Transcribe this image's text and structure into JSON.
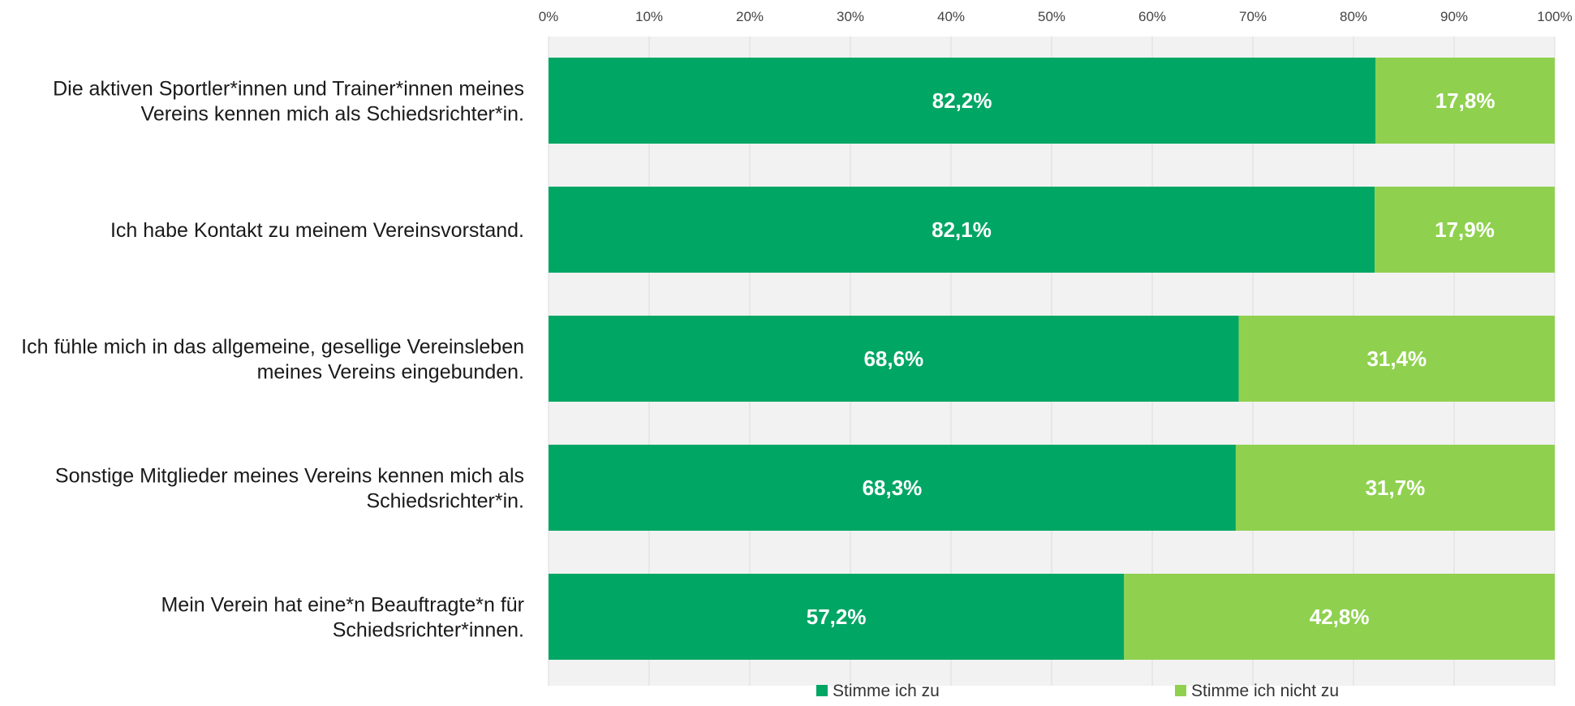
{
  "chart_data": {
    "type": "bar",
    "orientation": "horizontal",
    "stacked": true,
    "categories": [
      [
        "Die aktiven Sportler*innen und Trainer*innen meines",
        "Vereins kennen mich als Schiedsrichter*in."
      ],
      [
        "Ich habe Kontakt zu meinem Vereinsvorstand."
      ],
      [
        "Ich fühle mich in das allgemeine, gesellige Vereinsleben",
        "meines Vereins eingebunden."
      ],
      [
        "Sonstige Mitglieder meines Vereins kennen mich als",
        "Schiedsrichter*in."
      ],
      [
        "Mein Verein hat eine*n Beauftragte*n für",
        "Schiedsrichter*innen."
      ]
    ],
    "series": [
      {
        "name": "Stimme ich zu",
        "color": "#00a664",
        "values": [
          82.2,
          82.1,
          68.6,
          68.3,
          57.2
        ],
        "labels": [
          "82,2%",
          "82,1%",
          "68,6%",
          "68,3%",
          "57,2%"
        ]
      },
      {
        "name": "Stimme ich nicht zu",
        "color": "#8fd14f",
        "values": [
          17.8,
          17.9,
          31.4,
          31.7,
          42.8
        ],
        "labels": [
          "17,8%",
          "17,9%",
          "31,4%",
          "31,7%",
          "42,8%"
        ]
      }
    ],
    "xlim": [
      0,
      100
    ],
    "x_ticks": [
      "0%",
      "10%",
      "20%",
      "30%",
      "40%",
      "50%",
      "60%",
      "70%",
      "80%",
      "90%",
      "100%"
    ],
    "x_axis_position": "top",
    "grid": true,
    "legend": "bottom",
    "title": "",
    "xlabel": "",
    "ylabel": ""
  }
}
